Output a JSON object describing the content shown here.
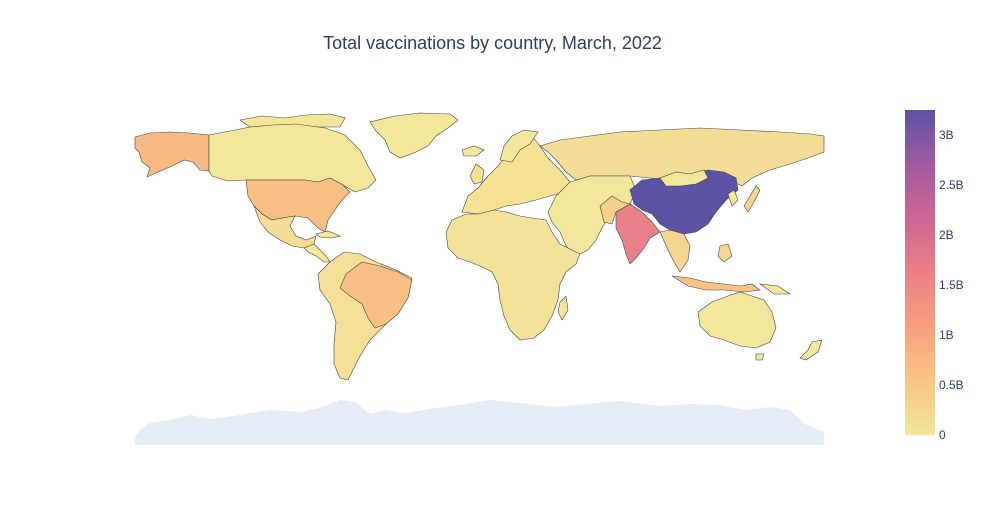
{
  "title": "Total vaccinations by country, March, 2022",
  "colorbar": {
    "ticks": [
      {
        "label": "3B",
        "value": 3000000000
      },
      {
        "label": "2.5B",
        "value": 2500000000
      },
      {
        "label": "2B",
        "value": 2000000000
      },
      {
        "label": "1.5B",
        "value": 1500000000
      },
      {
        "label": "1B",
        "value": 1000000000
      },
      {
        "label": "0.5B",
        "value": 500000000
      },
      {
        "label": "0",
        "value": 0
      }
    ],
    "range": [
      0,
      3250000000
    ],
    "colors": [
      "#f3e79b",
      "#fac484",
      "#f8a07e",
      "#eb7f86",
      "#ce6693",
      "#a059a0",
      "#5c53a5"
    ]
  },
  "map_colors": {
    "ocean": "#ffffff",
    "no_data": "#e5ecf6",
    "border": "#444444"
  },
  "chart_data": {
    "type": "choropleth",
    "title": "Total vaccinations by country, March, 2022",
    "colorscale_range": [
      0,
      3250000000
    ],
    "approx_values": [
      {
        "country": "China",
        "value": 3200000000
      },
      {
        "country": "India",
        "value": 1800000000
      },
      {
        "country": "United States",
        "value": 560000000
      },
      {
        "country": "Brazil",
        "value": 410000000
      },
      {
        "country": "Indonesia",
        "value": 360000000
      },
      {
        "country": "Japan",
        "value": 250000000
      },
      {
        "country": "Alaska (United States)",
        "value": 560000000
      },
      {
        "country": "Russia",
        "value": 160000000
      },
      {
        "country": "Canada",
        "value": 80000000
      },
      {
        "country": "Australia",
        "value": 55000000
      },
      {
        "country": "Pakistan",
        "value": 200000000
      },
      {
        "country": "Bangladesh",
        "value": 230000000
      },
      {
        "country": "Vietnam",
        "value": 200000000
      },
      {
        "country": "Mexico",
        "value": 180000000
      },
      {
        "country": "Africa (most countries)",
        "value": 20000000
      },
      {
        "country": "Europe (most countries)",
        "value": 60000000
      }
    ]
  }
}
